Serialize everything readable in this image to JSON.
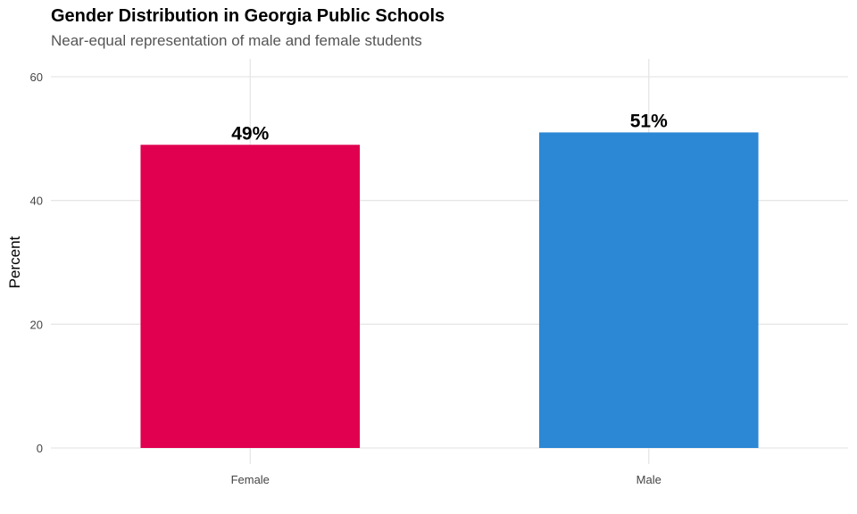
{
  "chart_data": {
    "type": "bar",
    "title": "Gender Distribution in Georgia Public Schools",
    "subtitle": "Near-equal representation of male and female students",
    "xlabel": "",
    "ylabel": "Percent",
    "categories": [
      "Female",
      "Male"
    ],
    "values": [
      49,
      51
    ],
    "value_labels": [
      "49%",
      "51%"
    ],
    "colors": [
      "#E0004F",
      "#2C87D4"
    ],
    "ylim": [
      0,
      63
    ],
    "yticks": [
      0,
      20,
      40,
      60
    ],
    "grid": true,
    "legend": "none"
  }
}
